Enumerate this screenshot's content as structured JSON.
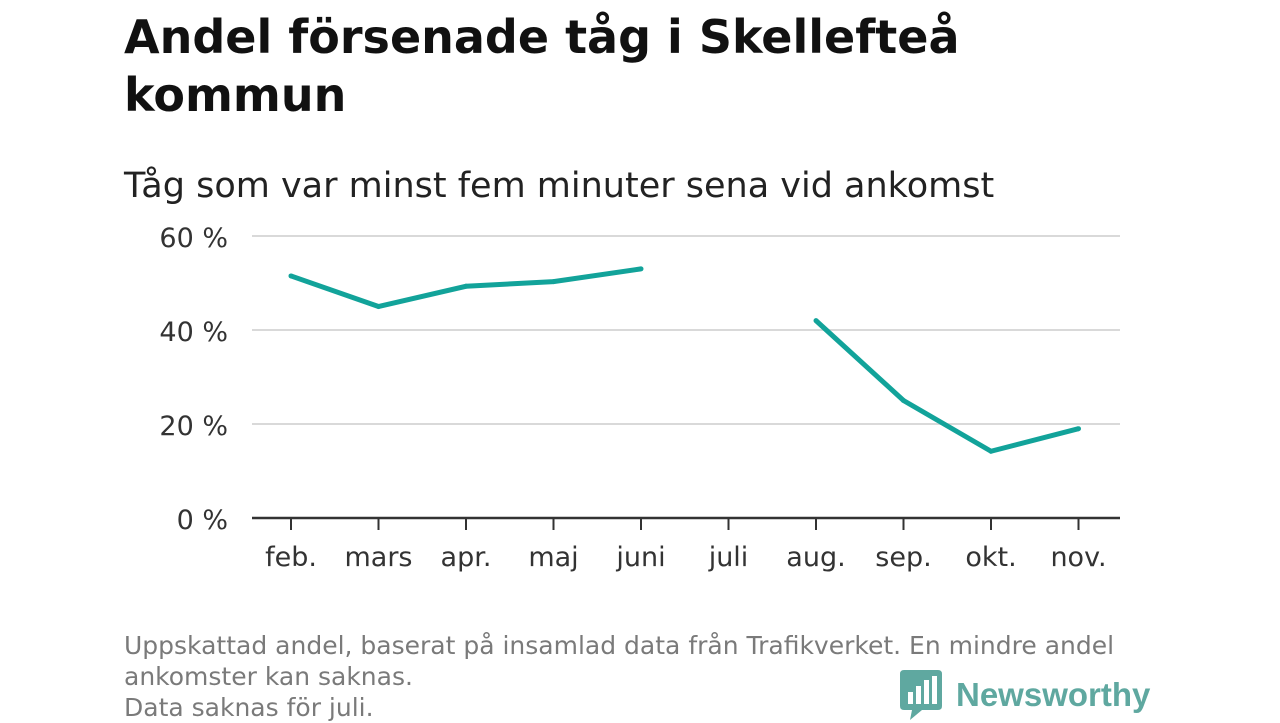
{
  "title": "Andel försenade tåg i Skellefteå kommun",
  "subtitle": "Tåg som var minst fem minuter sena vid ankomst",
  "footnote": {
    "line1": "Uppskattad andel, baserat på insamlad data från Trafikverket. En mindre andel",
    "line2": "ankomster kan saknas.",
    "line3": "Data saknas för juli."
  },
  "brand": {
    "name": "Newsworthy",
    "color": "#5fa8a0"
  },
  "colors": {
    "line": "#12a39a",
    "grid": "#d9d9d9",
    "axis": "#333333",
    "text": "#333333"
  },
  "chart_data": {
    "type": "line",
    "title": "Andel försenade tåg i Skellefteå kommun",
    "subtitle": "Tåg som var minst fem minuter sena vid ankomst",
    "categories": [
      "feb.",
      "mars",
      "apr.",
      "maj",
      "juni",
      "juli",
      "aug.",
      "sep.",
      "okt.",
      "nov."
    ],
    "series": [
      {
        "name": "Andel försenade",
        "values": [
          51.5,
          45,
          49.3,
          50.3,
          53,
          null,
          42,
          25,
          14.2,
          19
        ]
      }
    ],
    "yticks": [
      0,
      20,
      40,
      60
    ],
    "ytick_labels": [
      "0 %",
      "20 %",
      "40 %",
      "60 %"
    ],
    "ylim": [
      0,
      60
    ],
    "xlabel": "",
    "ylabel": "",
    "grid": true
  }
}
